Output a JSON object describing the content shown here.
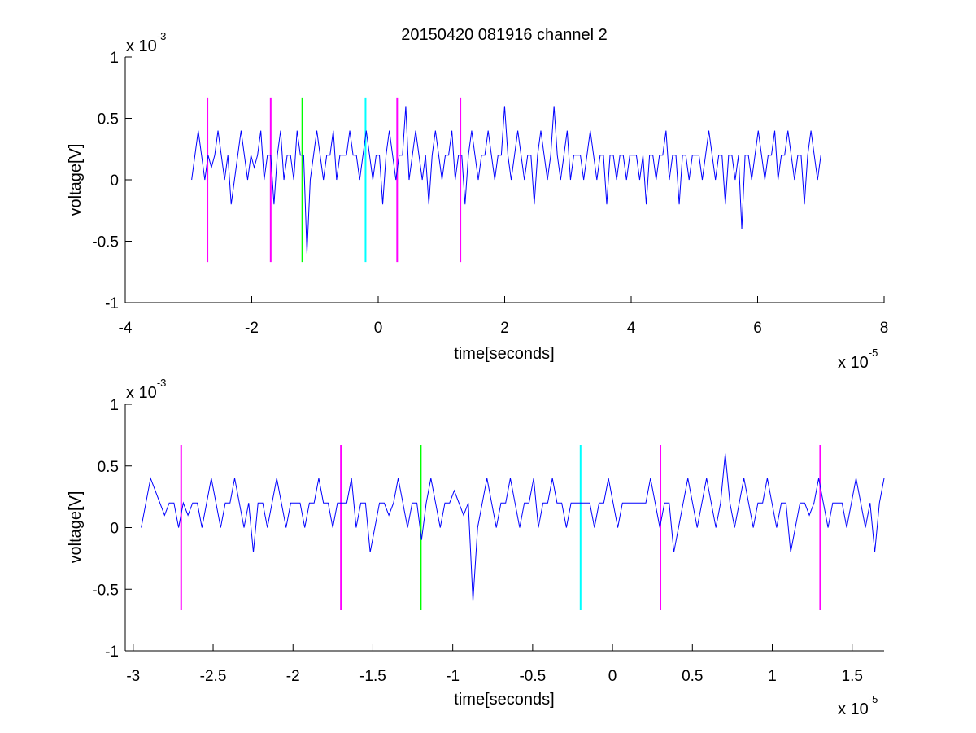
{
  "chart_data": [
    {
      "type": "line",
      "title": "20150420 081916 channel 2",
      "xlabel": "time[seconds]",
      "ylabel": "voltage[V]",
      "x_exponent": {
        "base": "x 10",
        "power": "-5"
      },
      "y_exponent": {
        "base": "x 10",
        "power": "-3"
      },
      "xlim": [
        -4,
        8
      ],
      "ylim": [
        -1,
        1
      ],
      "x_ticks": [
        -4,
        -2,
        0,
        2,
        4,
        6,
        8
      ],
      "x_tick_labels": [
        "-4",
        "-2",
        "0",
        "2",
        "4",
        "6",
        "8"
      ],
      "y_ticks": [
        -1,
        -0.5,
        0,
        0.5,
        1
      ],
      "y_tick_labels": [
        "-1",
        "-0.5",
        "0",
        "0.5",
        "1"
      ],
      "grid": false,
      "signal": {
        "color": "#0000ff",
        "x_start": -2.95,
        "x_end": 7.0,
        "levels": [
          0.0,
          0.2,
          0.4,
          0.2,
          0.0,
          0.2,
          0.1,
          0.2,
          0.4,
          0.2,
          0.0,
          0.2,
          -0.2,
          0.0,
          0.2,
          0.4,
          0.2,
          0.0,
          0.2,
          0.1,
          0.2,
          0.4,
          0.0,
          0.2,
          0.2,
          -0.2,
          0.2,
          0.4,
          0.0,
          0.2,
          0.2,
          0.0,
          0.4,
          0.2,
          0.2,
          -0.6,
          0.0,
          0.2,
          0.4,
          0.2,
          0.0,
          0.2,
          0.2,
          0.4,
          0.0,
          0.2,
          0.2,
          0.2,
          0.4,
          0.2,
          0.2,
          0.0,
          0.2,
          0.4,
          0.2,
          0.0,
          0.2,
          0.2,
          -0.2,
          0.2,
          0.4,
          0.2,
          0.0,
          0.2,
          0.2,
          0.6,
          0.0,
          0.2,
          0.4,
          0.2,
          0.0,
          0.2,
          -0.2,
          0.2,
          0.4,
          0.2,
          0.0,
          0.2,
          0.2,
          0.4,
          0.0,
          0.2,
          0.2,
          -0.2,
          0.2,
          0.4,
          0.2,
          0.0,
          0.2,
          0.2,
          0.4,
          0.2,
          0.0,
          0.2,
          0.2,
          0.6,
          0.2,
          0.0,
          0.2,
          0.4,
          0.2,
          0.0,
          0.2,
          0.2,
          -0.2,
          0.2,
          0.4,
          0.2,
          0.0,
          0.2,
          0.6,
          0.2,
          0.0,
          0.2,
          0.4,
          0.0,
          0.2,
          0.2,
          0.2,
          0.0,
          0.2,
          0.4,
          0.2,
          0.0,
          0.2,
          0.2,
          -0.2,
          0.2,
          0.2,
          0.0,
          0.2,
          0.2,
          0.0,
          0.2,
          0.2,
          0.2,
          0.0,
          0.2,
          -0.2,
          0.2,
          0.2,
          0.0,
          0.2,
          0.2,
          0.4,
          0.0,
          0.2,
          0.2,
          -0.2,
          0.2,
          0.2,
          0.0,
          0.2,
          0.2,
          0.2,
          0.0,
          0.2,
          0.4,
          0.2,
          0.0,
          0.2,
          0.2,
          -0.2,
          0.2,
          0.2,
          0.0,
          0.2,
          -0.4,
          0.2,
          0.2,
          0.0,
          0.2,
          0.4,
          0.2,
          0.0,
          0.2,
          0.2,
          0.4,
          0.0,
          0.2,
          0.2,
          0.4,
          0.2,
          0.0,
          0.2,
          0.2,
          -0.2,
          0.2,
          0.4,
          0.2,
          0.0,
          0.2
        ]
      },
      "markers": [
        {
          "x": -2.7,
          "color": "#ff00ff",
          "ymin": -0.67,
          "ymax": 0.67
        },
        {
          "x": -1.7,
          "color": "#ff00ff",
          "ymin": -0.67,
          "ymax": 0.67
        },
        {
          "x": -1.2,
          "color": "#00ff00",
          "ymin": -0.67,
          "ymax": 0.67
        },
        {
          "x": -0.2,
          "color": "#00ffff",
          "ymin": -0.67,
          "ymax": 0.67
        },
        {
          "x": 0.3,
          "color": "#ff00ff",
          "ymin": -0.67,
          "ymax": 0.67
        },
        {
          "x": 1.3,
          "color": "#ff00ff",
          "ymin": -0.67,
          "ymax": 0.67
        }
      ]
    },
    {
      "type": "line",
      "title": "",
      "xlabel": "time[seconds]",
      "ylabel": "voltage[V]",
      "x_exponent": {
        "base": "x 10",
        "power": "-5"
      },
      "y_exponent": {
        "base": "x 10",
        "power": "-3"
      },
      "xlim": [
        -3.05,
        1.7
      ],
      "ylim": [
        -1,
        1
      ],
      "x_ticks": [
        -3,
        -2.5,
        -2,
        -1.5,
        -1,
        -0.5,
        0,
        0.5,
        1,
        1.5
      ],
      "x_tick_labels": [
        "-3",
        "-2.5",
        "-2",
        "-1.5",
        "-1",
        "-0.5",
        "0",
        "0.5",
        "1",
        "1.5"
      ],
      "y_ticks": [
        -1,
        -0.5,
        0,
        0.5,
        1
      ],
      "y_tick_labels": [
        "-1",
        "-0.5",
        "0",
        "0.5",
        "1"
      ],
      "grid": false,
      "signal": {
        "color": "#0000ff",
        "x_start": -2.95,
        "x_end": 1.7,
        "levels": [
          0.0,
          0.2,
          0.4,
          0.3,
          0.2,
          0.1,
          0.2,
          0.2,
          0.0,
          0.2,
          0.1,
          0.2,
          0.2,
          0.0,
          0.2,
          0.4,
          0.2,
          0.0,
          0.2,
          0.2,
          0.4,
          0.2,
          0.0,
          0.2,
          -0.2,
          0.2,
          0.2,
          0.0,
          0.2,
          0.4,
          0.2,
          0.0,
          0.2,
          0.2,
          0.2,
          0.0,
          0.2,
          0.2,
          0.4,
          0.2,
          0.2,
          0.0,
          0.2,
          0.2,
          0.2,
          0.4,
          0.0,
          0.2,
          0.2,
          -0.2,
          0.0,
          0.2,
          0.2,
          0.1,
          0.2,
          0.4,
          0.2,
          0.0,
          0.2,
          0.2,
          -0.1,
          0.2,
          0.4,
          0.2,
          0.0,
          0.2,
          0.2,
          0.3,
          0.2,
          0.1,
          0.2,
          -0.6,
          0.0,
          0.2,
          0.4,
          0.2,
          0.0,
          0.2,
          0.2,
          0.4,
          0.2,
          0.0,
          0.2,
          0.2,
          0.4,
          0.0,
          0.2,
          0.2,
          0.4,
          0.2,
          0.2,
          0.0,
          0.2,
          0.2,
          0.2,
          0.2,
          0.2,
          0.0,
          0.2,
          0.2,
          0.4,
          0.2,
          0.0,
          0.2,
          0.2,
          0.2,
          0.2,
          0.2,
          0.2,
          0.4,
          0.2,
          0.0,
          0.2,
          0.2,
          -0.2,
          0.0,
          0.2,
          0.4,
          0.2,
          0.0,
          0.2,
          0.4,
          0.2,
          0.0,
          0.2,
          0.6,
          0.2,
          0.0,
          0.2,
          0.4,
          0.2,
          0.0,
          0.2,
          0.2,
          0.4,
          0.2,
          0.0,
          0.2,
          0.2,
          -0.2,
          0.0,
          0.2,
          0.2,
          0.1,
          0.2,
          0.4,
          0.2,
          0.0,
          0.2,
          0.2,
          0.2,
          0.0,
          0.2,
          0.4,
          0.2,
          0.0,
          0.2,
          -0.2,
          0.2,
          0.4
        ]
      },
      "markers": [
        {
          "x": -2.7,
          "color": "#ff00ff",
          "ymin": -0.67,
          "ymax": 0.67
        },
        {
          "x": -1.7,
          "color": "#ff00ff",
          "ymin": -0.67,
          "ymax": 0.67
        },
        {
          "x": -1.2,
          "color": "#00ff00",
          "ymin": -0.67,
          "ymax": 0.67
        },
        {
          "x": -0.2,
          "color": "#00ffff",
          "ymin": -0.67,
          "ymax": 0.67
        },
        {
          "x": 0.3,
          "color": "#ff00ff",
          "ymin": -0.67,
          "ymax": 0.67
        },
        {
          "x": 1.3,
          "color": "#ff00ff",
          "ymin": -0.67,
          "ymax": 0.67
        }
      ]
    }
  ]
}
